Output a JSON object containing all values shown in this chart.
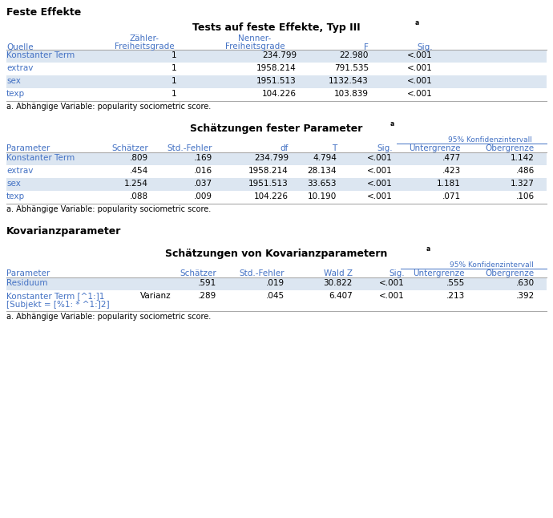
{
  "bg_color": "#ffffff",
  "black": "#000000",
  "blue": "#4472c4",
  "gray_line": "#aaaaaa",
  "row_colors": [
    "#dce6f1",
    "#ffffff",
    "#dce6f1",
    "#ffffff"
  ],
  "section1_title": "Feste Effekte",
  "t1_title": "Tests auf feste Effekte, Typ III",
  "t1_sup": "a",
  "t1_headers": [
    "Quelle",
    "Zähler-\nFreiheitsgrade",
    "Nenner-\nFreiheitsgrade",
    "F",
    "Sig."
  ],
  "t1_rows": [
    [
      "Konstanter Term",
      "1",
      "234.799",
      "22.980",
      "<.001"
    ],
    [
      "extrav",
      "1",
      "1958.214",
      "791.535",
      "<.001"
    ],
    [
      "sex",
      "1",
      "1951.513",
      "1132.543",
      "<.001"
    ],
    [
      "texp",
      "1",
      "104.226",
      "103.839",
      "<.001"
    ]
  ],
  "t1_note": "a. Abhängige Variable: popularity sociometric score.",
  "t2_title": "Schätzungen fester Parameter",
  "t2_sup": "a",
  "t2_rows": [
    [
      "Konstanter Term",
      ".809",
      ".169",
      "234.799",
      "4.794",
      "<.001",
      ".477",
      "1.142"
    ],
    [
      "extrav",
      ".454",
      ".016",
      "1958.214",
      "28.134",
      "<.001",
      ".423",
      ".486"
    ],
    [
      "sex",
      "1.254",
      ".037",
      "1951.513",
      "33.653",
      "<.001",
      "1.181",
      "1.327"
    ],
    [
      "texp",
      ".088",
      ".009",
      "104.226",
      "10.190",
      "<.001",
      ".071",
      ".106"
    ]
  ],
  "t2_note": "a. Abhängige Variable: popularity sociometric score.",
  "section3_title": "Kovarianzparameter",
  "t3_title": "Schätzungen von Kovarianzparametern",
  "t3_sup": "a",
  "t3_row0": [
    "Residuum",
    "",
    ".591",
    ".019",
    "30.822",
    "<.001",
    ".555",
    ".630"
  ],
  "t3_row1_a": "Konstanter Term [^1:]1",
  "t3_row1_b": "[Subjekt = [%1: * ^1:]2]",
  "t3_row1_type": "Varianz",
  "t3_row1_vals": [
    ".289",
    ".045",
    "6.407",
    "<.001",
    ".213",
    ".392"
  ],
  "t3_note": "a. Abhängige Variable: popularity sociometric score.",
  "conf_label": "95% Konfidenzintervall",
  "h_param": "Parameter",
  "h_schaetzer": "Schätzer",
  "h_std": "Std.-Fehler",
  "h_df": "df",
  "h_T": "T",
  "h_sig": "Sig.",
  "h_waldz": "Wald Z",
  "h_unter": "Untergrenze",
  "h_ober": "Obergrenze"
}
